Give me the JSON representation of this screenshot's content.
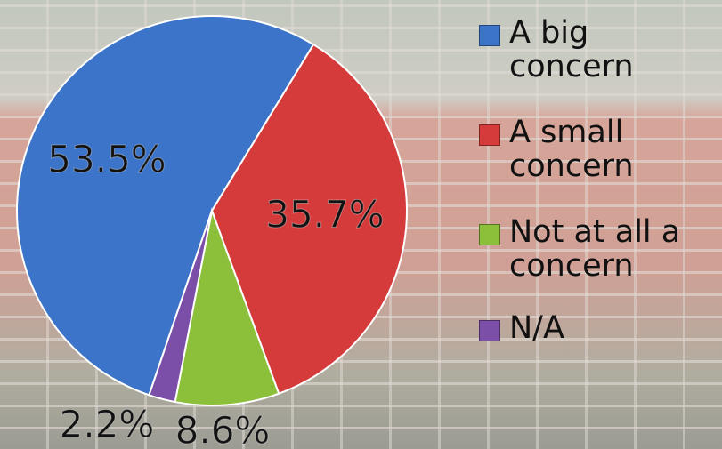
{
  "chart_data": {
    "type": "pie",
    "categories": [
      "A big concern",
      "A small concern",
      "Not at all a concern",
      "N/A"
    ],
    "values": [
      53.5,
      35.7,
      8.6,
      2.2
    ],
    "value_labels": [
      "53.5%",
      "35.7%",
      "8.6%",
      "2.2%"
    ],
    "colors": [
      "#3b74c8",
      "#d63b3b",
      "#8cbf3a",
      "#7b4fa8"
    ],
    "legend": "right"
  }
}
